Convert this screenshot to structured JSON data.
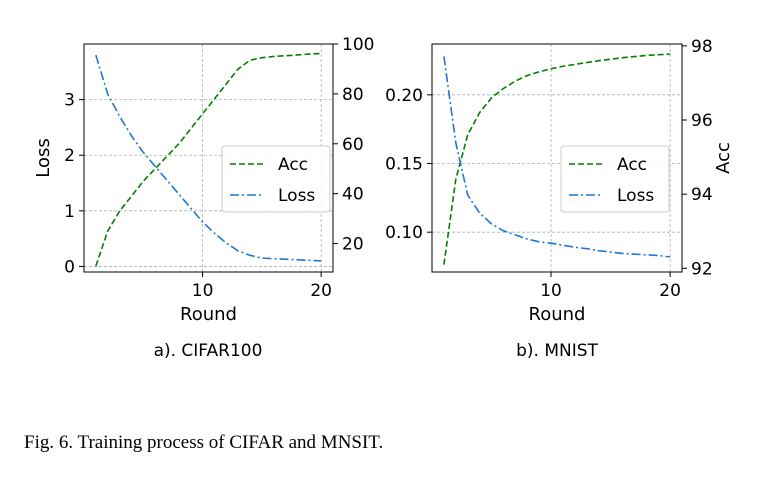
{
  "caption": "Fig. 6.  Training process of CIFAR and MNSIT.",
  "colors": {
    "acc": "#008000",
    "loss": "#1f77d4"
  },
  "chart_data": [
    {
      "type": "line",
      "subtitle": "a). CIFAR100",
      "xlabel": "Round",
      "ylabel_left": "Loss",
      "ylabel_right": "",
      "xlim": [
        0,
        21
      ],
      "ylim_left": [
        -0.1,
        4.0
      ],
      "ylim_right": [
        8.6,
        100
      ],
      "xticks": [
        10,
        20
      ],
      "yticks_left": [
        0,
        1,
        2,
        3
      ],
      "yticks_right": [
        20,
        40,
        60,
        80,
        100
      ],
      "grid": true,
      "legend_placement": "center-right",
      "x": [
        1,
        2,
        3,
        4,
        5,
        6,
        7,
        8,
        9,
        10,
        11,
        12,
        13,
        14,
        15,
        16,
        17,
        18,
        19,
        20
      ],
      "series": [
        {
          "name": "Acc",
          "axis": "right",
          "style": "dashed",
          "values": [
            11,
            25,
            33,
            39,
            45,
            50,
            55,
            60,
            66,
            72,
            78,
            84,
            90,
            93.5,
            94.5,
            95,
            95.3,
            95.6,
            96,
            96.2
          ]
        },
        {
          "name": "Loss",
          "axis": "left",
          "style": "dashdot",
          "values": [
            3.8,
            3.1,
            2.7,
            2.35,
            2.05,
            1.8,
            1.55,
            1.3,
            1.05,
            0.8,
            0.6,
            0.42,
            0.28,
            0.2,
            0.15,
            0.14,
            0.13,
            0.12,
            0.11,
            0.1
          ]
        }
      ]
    },
    {
      "type": "line",
      "subtitle": "b). MNIST",
      "xlabel": "Round",
      "ylabel_left": "",
      "ylabel_right": "Acc",
      "xlim": [
        0,
        21
      ],
      "ylim_left": [
        0.071,
        0.237
      ],
      "ylim_right": [
        91.9,
        98.05
      ],
      "xticks": [
        10,
        20
      ],
      "yticks_left": [
        0.1,
        0.15,
        0.2
      ],
      "yticks_right": [
        92,
        94,
        96,
        98
      ],
      "grid": true,
      "legend_placement": "center-right",
      "x": [
        1,
        2,
        3,
        4,
        5,
        6,
        7,
        8,
        9,
        10,
        11,
        12,
        13,
        14,
        15,
        16,
        17,
        18,
        19,
        20
      ],
      "series": [
        {
          "name": "Acc",
          "axis": "right",
          "style": "dashed",
          "values": [
            92.1,
            94.4,
            95.6,
            96.2,
            96.6,
            96.85,
            97.05,
            97.2,
            97.3,
            97.38,
            97.45,
            97.5,
            97.55,
            97.6,
            97.64,
            97.68,
            97.71,
            97.74,
            97.76,
            97.78
          ]
        },
        {
          "name": "Loss",
          "axis": "left",
          "style": "dashdot",
          "values": [
            0.228,
            0.165,
            0.127,
            0.114,
            0.106,
            0.101,
            0.098,
            0.095,
            0.093,
            0.092,
            0.0905,
            0.089,
            0.088,
            0.0865,
            0.0855,
            0.0845,
            0.084,
            0.0835,
            0.083,
            0.082
          ]
        }
      ]
    }
  ]
}
